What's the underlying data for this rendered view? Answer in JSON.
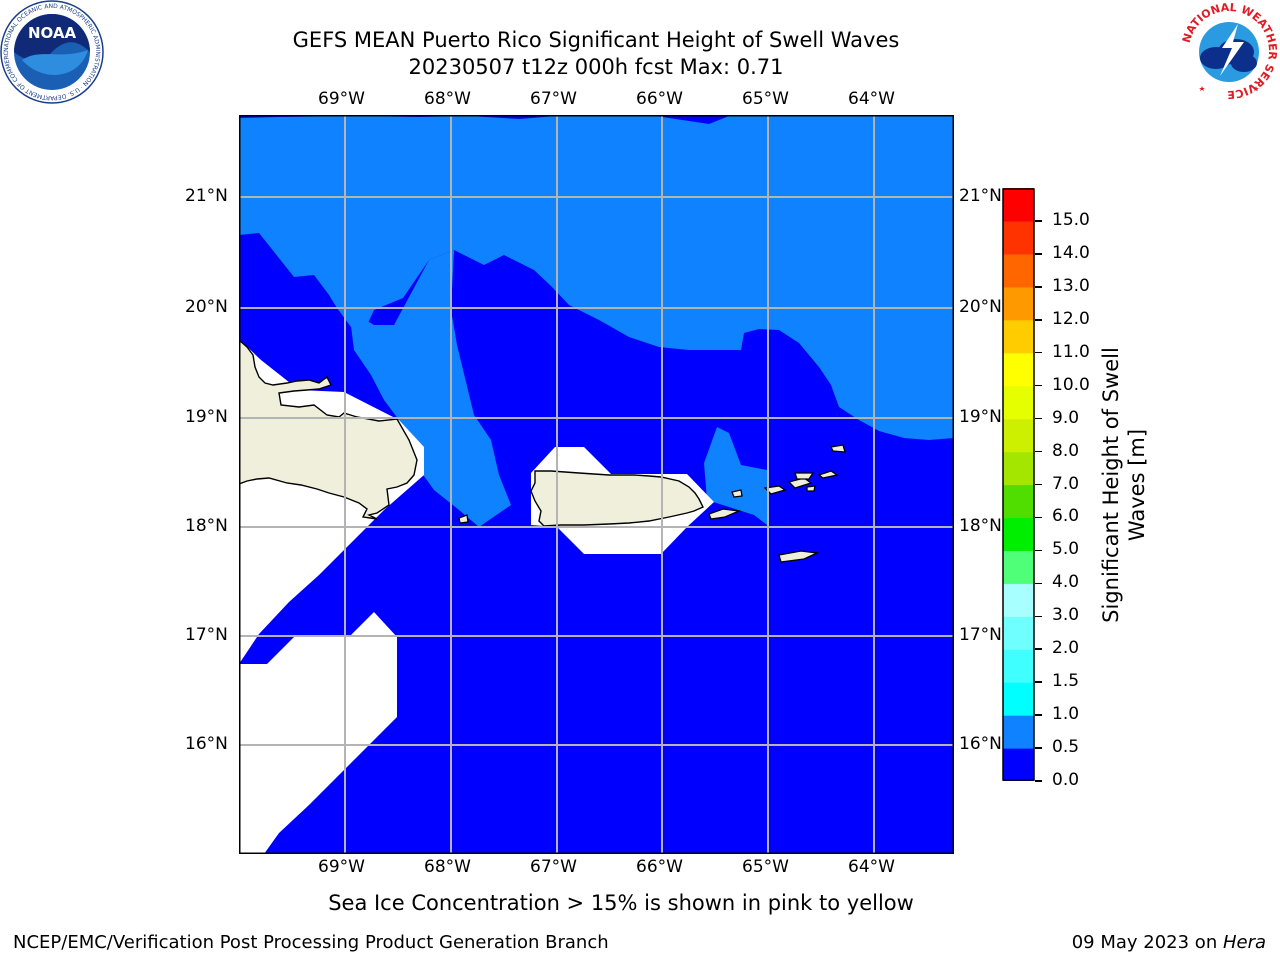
{
  "title": {
    "line1": "GEFS MEAN Puerto Rico Significant Height of Swell Waves",
    "line2": "20230507 t12z 000h fcst   Max: 0.71"
  },
  "map": {
    "lon_labels": [
      "69°W",
      "68°W",
      "67°W",
      "66°W",
      "65°W",
      "64°W"
    ],
    "lat_labels": [
      "21°N",
      "20°N",
      "19°N",
      "18°N",
      "17°N",
      "16°N"
    ],
    "extent": {
      "lon_min": -70.0,
      "lon_max": -63.25,
      "lat_min": 15.0,
      "lat_max": 21.75
    },
    "colors": {
      "level_0_0p5": "#0000ff",
      "level_0p5_1": "#0f82ff",
      "land": "#efefdc",
      "masked": "#ffffff",
      "grid": "#b4b4b4"
    }
  },
  "colorbar": {
    "label": "Significant Height of Swell Waves [m]",
    "levels": [
      "0.0",
      "0.5",
      "1.0",
      "1.5",
      "2.0",
      "3.0",
      "4.0",
      "5.0",
      "6.0",
      "7.0",
      "8.0",
      "9.0",
      "10.0",
      "11.0",
      "12.0",
      "13.0",
      "14.0",
      "15.0"
    ],
    "colors": [
      "#0000ff",
      "#0f82ff",
      "#00ffff",
      "#40ffff",
      "#70ffff",
      "#a8ffff",
      "#50ff78",
      "#00ee00",
      "#50dd00",
      "#a5e600",
      "#ccf000",
      "#e6ff00",
      "#ffff00",
      "#ffcc00",
      "#ff9900",
      "#ff6600",
      "#ff3300",
      "#ff0000"
    ]
  },
  "ice_note": "Sea Ice Concentration > 15% is shown in pink to yellow",
  "footer": {
    "left": "NCEP/EMC/Verification Post Processing Product Generation Branch",
    "date": "09 May 2023 on ",
    "host": "Hera"
  },
  "logos": {
    "noaa_text": "NOAA",
    "noaa_ring": "NATIONAL OCEANIC AND ATMOSPHERIC ADMINISTRATION · U.S. DEPARTMENT OF COMMERCE",
    "nws_ring": "NATIONAL WEATHER SERVICE"
  }
}
